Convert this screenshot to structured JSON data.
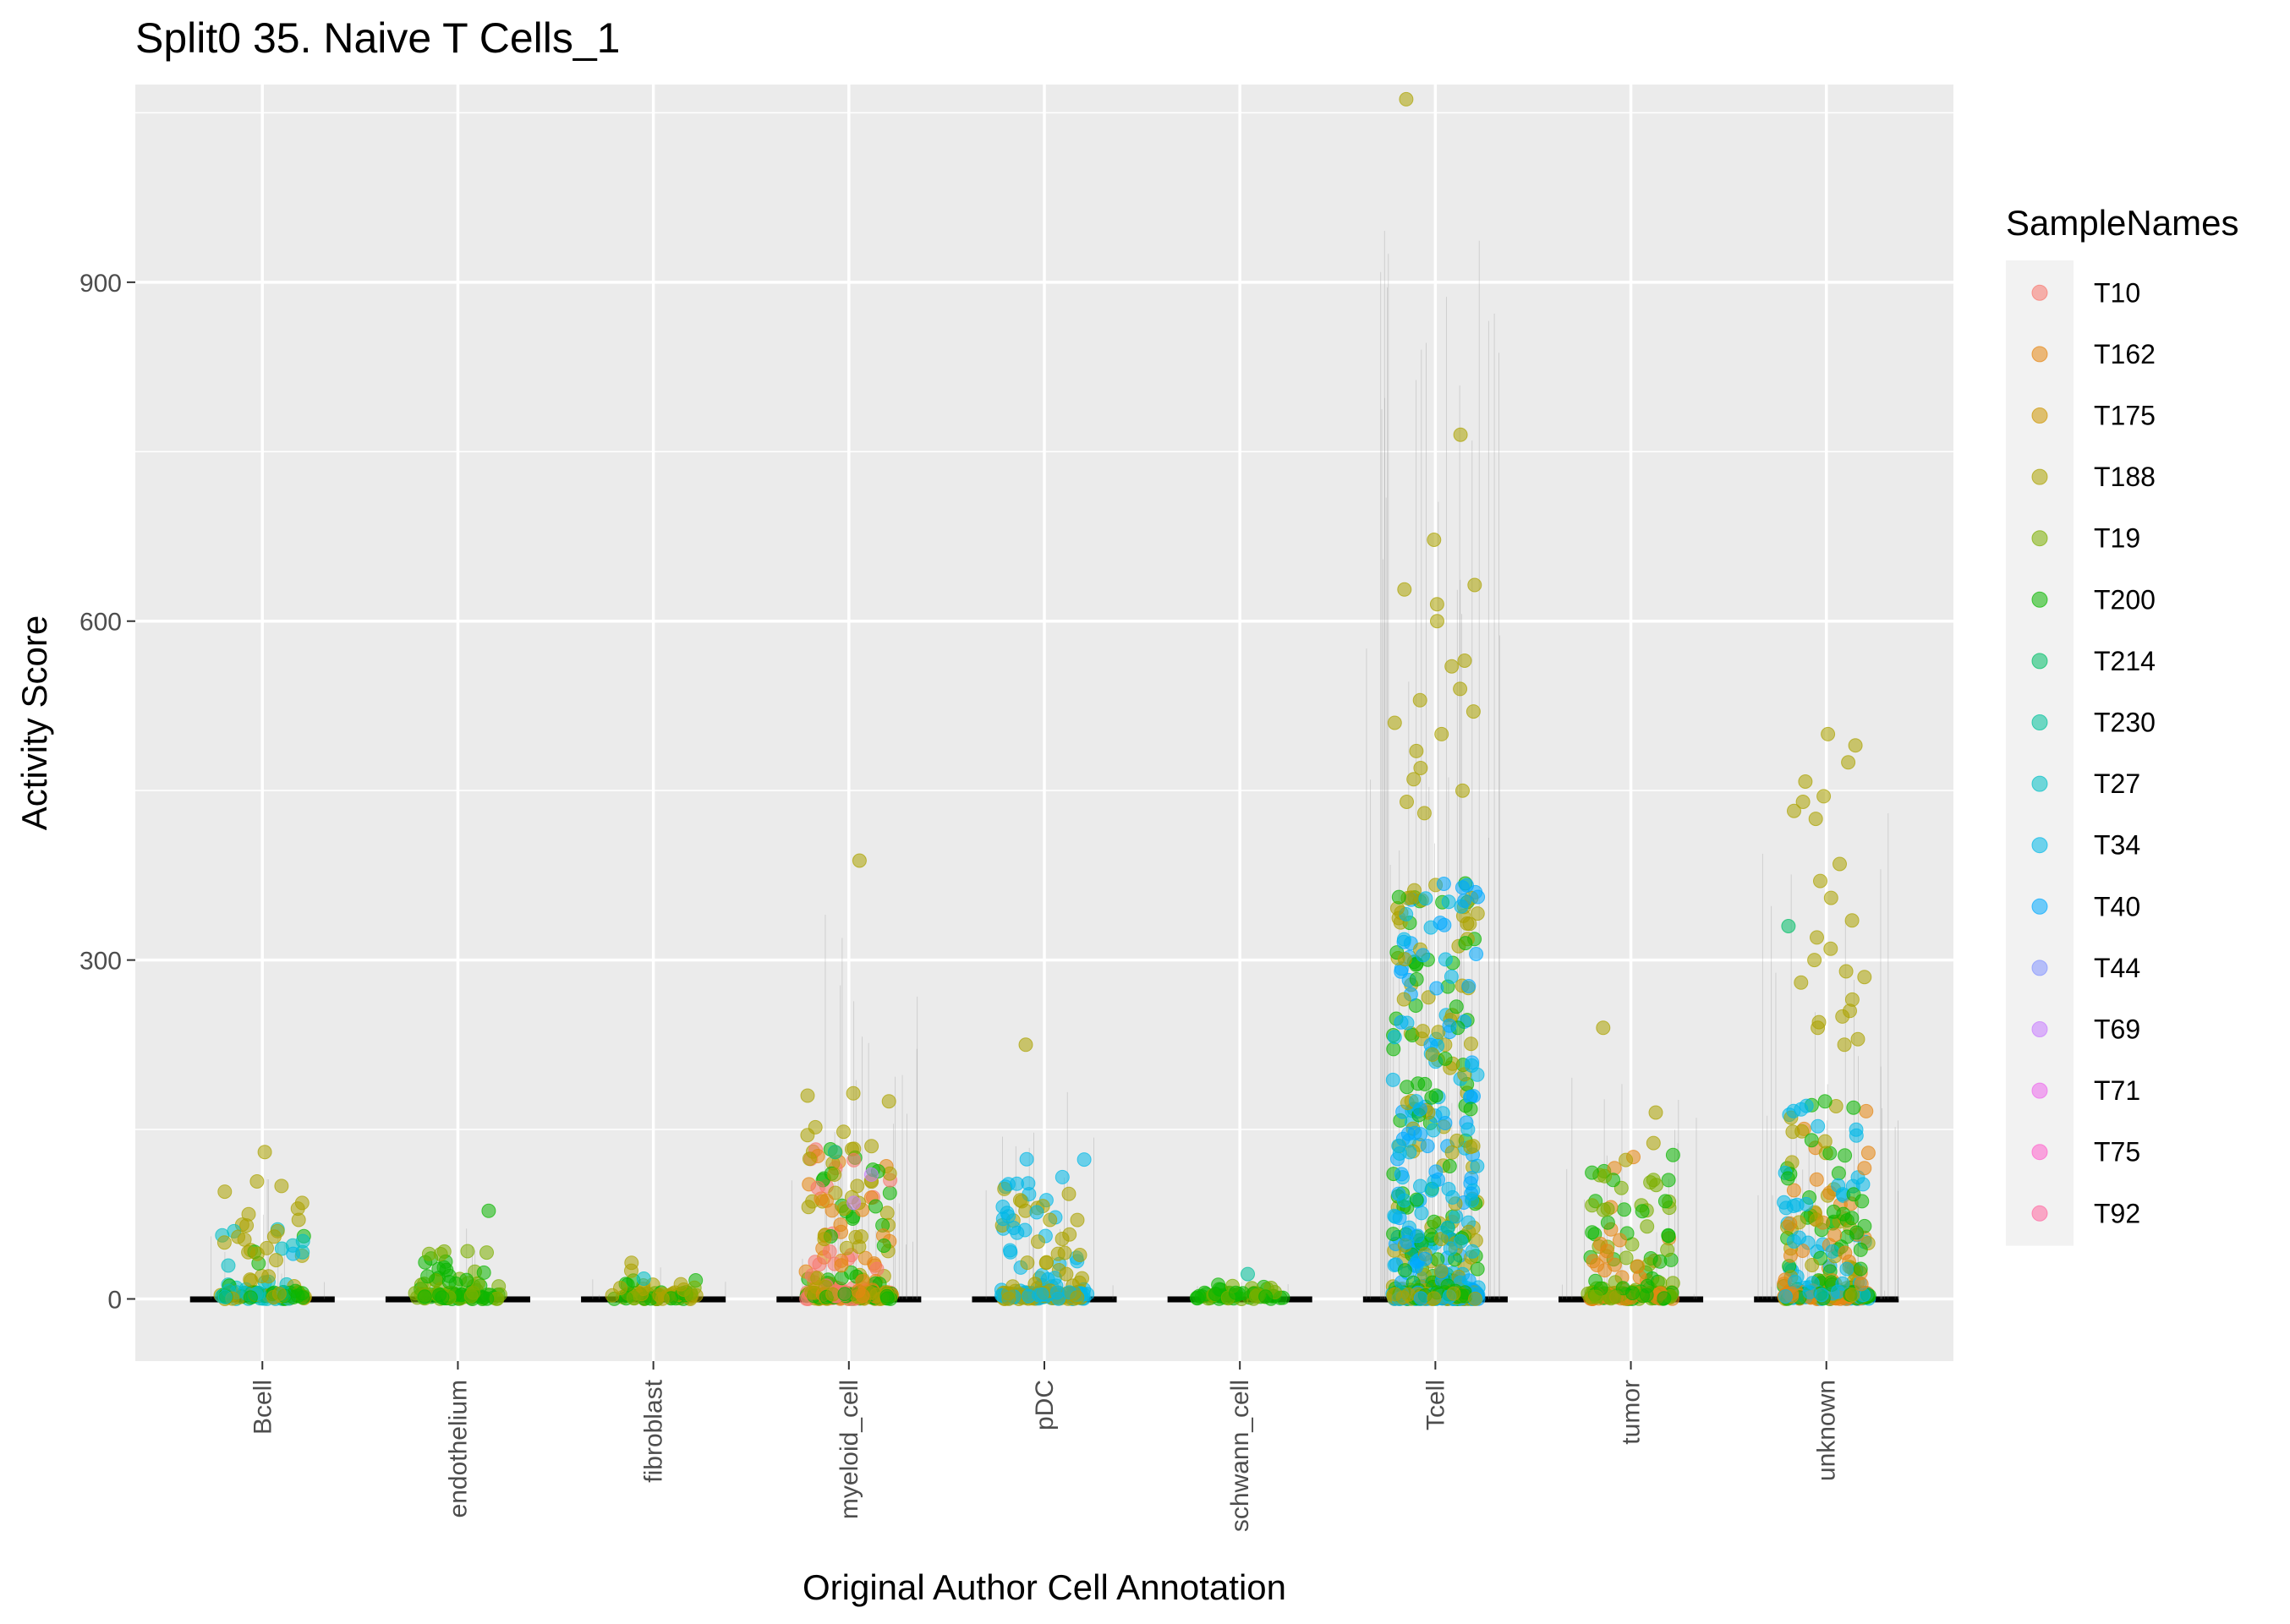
{
  "chart_data": {
    "type": "scatter",
    "subtype": "jittered strip plot with violin outlines",
    "title": "Split0 35. Naive T Cells_1",
    "xlabel": "Original Author Cell Annotation",
    "ylabel": "Activity Score",
    "categories": [
      "Bcell",
      "endothelium",
      "fibroblast",
      "myeloid_cell",
      "pDC",
      "schwann_cell",
      "Tcell",
      "tumor",
      "unknown"
    ],
    "y_ticks": [
      0,
      300,
      600,
      900
    ],
    "y_tick_labels": [
      "0",
      "300",
      "600",
      "900"
    ],
    "ylim": [
      -55,
      1075
    ],
    "grid": true,
    "legend": {
      "title": "SampleNames",
      "position": "right",
      "entries": [
        {
          "name": "T10",
          "color": "#F8766D"
        },
        {
          "name": "T162",
          "color": "#E68613"
        },
        {
          "name": "T175",
          "color": "#CD9600"
        },
        {
          "name": "T188",
          "color": "#ABA300"
        },
        {
          "name": "T19",
          "color": "#7CAE00"
        },
        {
          "name": "T200",
          "color": "#0CB702"
        },
        {
          "name": "T214",
          "color": "#00BE67"
        },
        {
          "name": "T230",
          "color": "#00C19A"
        },
        {
          "name": "T27",
          "color": "#00BFC4"
        },
        {
          "name": "T34",
          "color": "#00B8E7"
        },
        {
          "name": "T40",
          "color": "#00A9FF"
        },
        {
          "name": "T44",
          "color": "#8494FF"
        },
        {
          "name": "T69",
          "color": "#C77CFF"
        },
        {
          "name": "T71",
          "color": "#ED68ED"
        },
        {
          "name": "T75",
          "color": "#FF61CC"
        },
        {
          "name": "T92",
          "color": "#FF68A1"
        }
      ]
    },
    "group_summary": [
      {
        "category": "Bcell",
        "max": 130,
        "dominant_series": [
          "T188",
          "T27",
          "T200"
        ]
      },
      {
        "category": "endothelium",
        "max": 78,
        "dominant_series": [
          "T200",
          "T19"
        ]
      },
      {
        "category": "fibroblast",
        "max": 32,
        "dominant_series": [
          "T19",
          "T200",
          "T188"
        ]
      },
      {
        "category": "myeloid_cell",
        "max": 388,
        "dominant_series": [
          "T188",
          "T200",
          "T162",
          "T10"
        ]
      },
      {
        "category": "pDC",
        "max": 225,
        "dominant_series": [
          "T34",
          "T188"
        ]
      },
      {
        "category": "schwann_cell",
        "max": 25,
        "dominant_series": [
          "T200",
          "T19"
        ]
      },
      {
        "category": "Tcell",
        "max": 1062,
        "dominant_series": [
          "T188",
          "T34",
          "T40",
          "T200"
        ]
      },
      {
        "category": "tumor",
        "max": 240,
        "dominant_series": [
          "T162",
          "T200",
          "T19"
        ]
      },
      {
        "category": "unknown",
        "max": 500,
        "dominant_series": [
          "T188",
          "T200",
          "T162",
          "T34"
        ]
      }
    ],
    "outliers": [
      {
        "category": "Bcell",
        "series": "T188",
        "y": [
          130,
          104,
          100,
          95,
          85,
          80,
          75,
          70,
          65,
          60,
          55,
          50,
          45,
          40
        ]
      },
      {
        "category": "Bcell",
        "series": "T34",
        "y": [
          40
        ]
      },
      {
        "category": "endothelium",
        "series": "T200",
        "y": [
          78,
          20,
          15
        ]
      },
      {
        "category": "fibroblast",
        "series": "T188",
        "y": [
          32,
          25
        ]
      },
      {
        "category": "fibroblast",
        "series": "T27",
        "y": [
          18
        ]
      },
      {
        "category": "myeloid_cell",
        "series": "T188",
        "y": [
          388,
          182,
          180,
          175,
          152,
          148,
          145,
          130,
          110,
          100,
          90,
          85,
          80
        ]
      },
      {
        "category": "myeloid_cell",
        "series": "T230",
        "y": [
          130
        ]
      },
      {
        "category": "myeloid_cell",
        "series": "T200",
        "y": [
          113
        ]
      },
      {
        "category": "myeloid_cell",
        "series": "T69",
        "y": [
          110,
          85
        ]
      },
      {
        "category": "pDC",
        "series": "T188",
        "y": [
          225,
          93,
          70,
          40,
          32,
          22
        ]
      },
      {
        "category": "schwann_cell",
        "series": "T230",
        "y": [
          22
        ]
      },
      {
        "category": "Tcell",
        "series": "T188",
        "y": [
          1062,
          765,
          672,
          632,
          628,
          615,
          600,
          565,
          560,
          540,
          530,
          520,
          510,
          500,
          485,
          470,
          460,
          450,
          440,
          430
        ]
      },
      {
        "category": "Tcell",
        "series": "T200",
        "y": [
          315
        ]
      },
      {
        "category": "tumor",
        "series": "T188",
        "y": [
          240,
          165,
          138,
          123
        ]
      },
      {
        "category": "unknown",
        "series": "T188",
        "y": [
          500,
          490,
          475,
          458,
          445,
          440,
          432,
          425,
          385,
          370,
          355,
          335,
          320,
          310,
          300,
          290,
          285,
          280,
          265,
          255,
          250,
          245,
          240,
          230,
          225
        ]
      },
      {
        "category": "unknown",
        "series": "T214",
        "y": [
          330
        ]
      }
    ]
  }
}
